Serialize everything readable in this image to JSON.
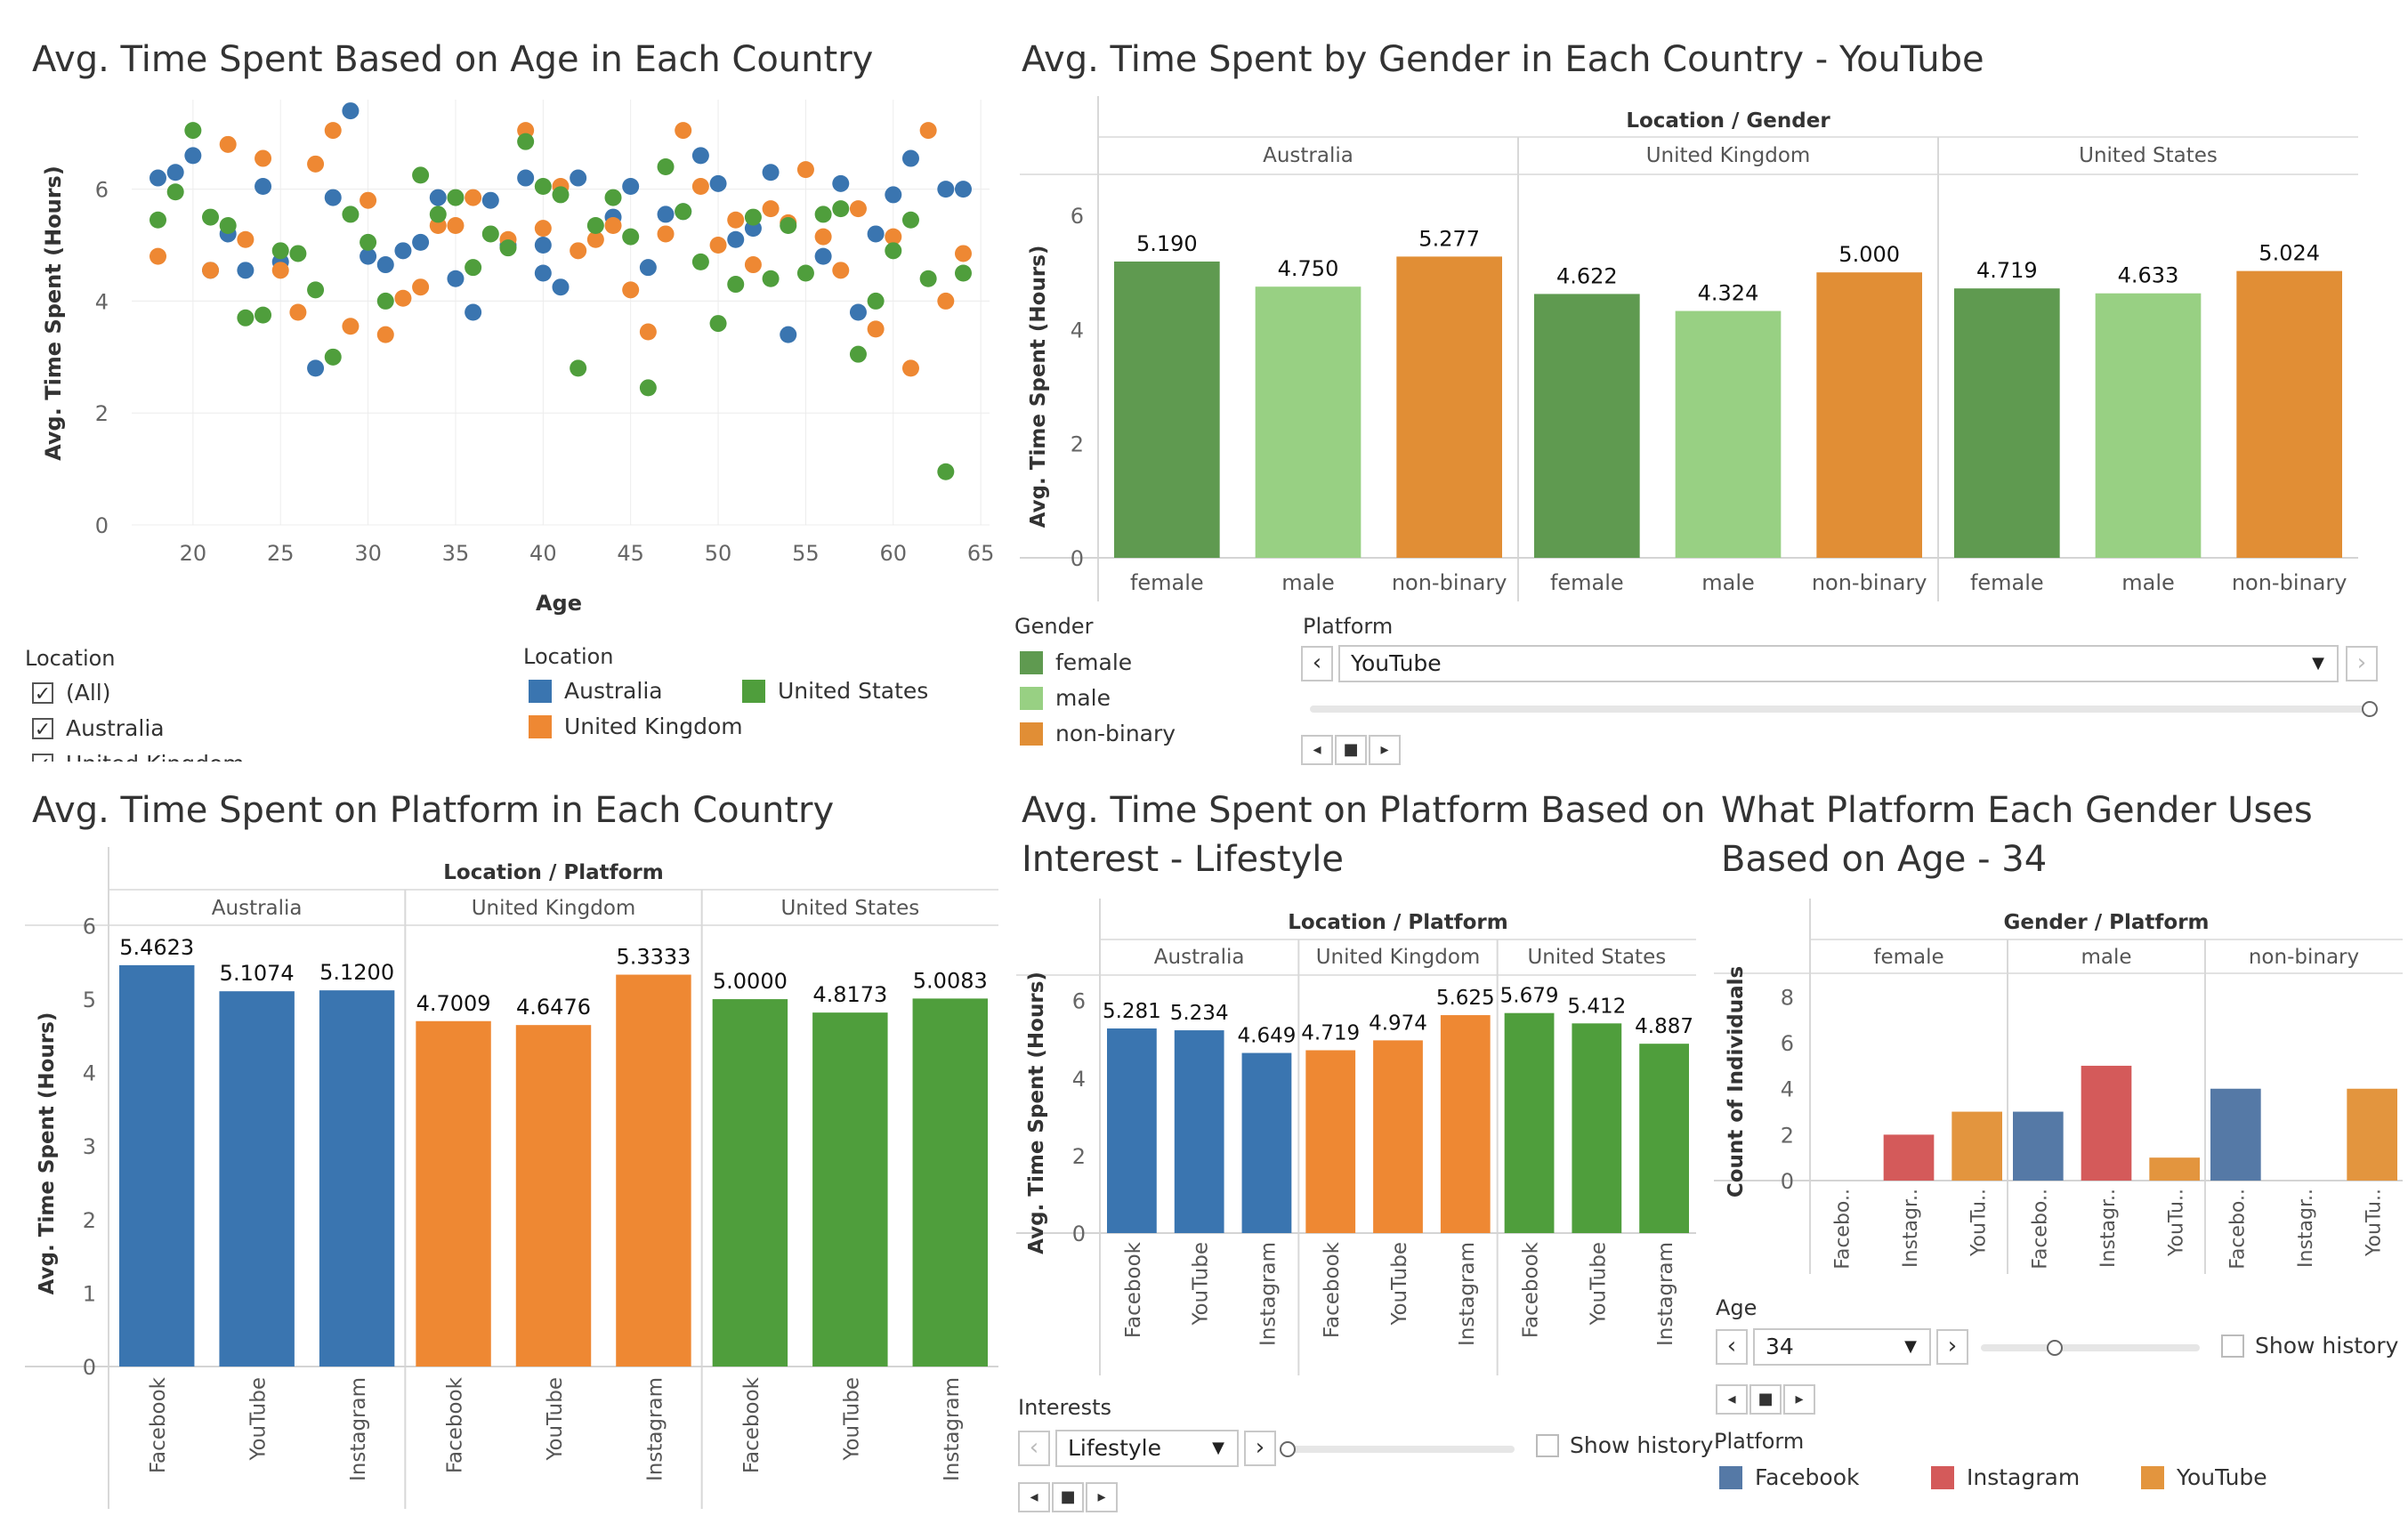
{
  "colors": {
    "australia": "#3a75b0",
    "united_kingdom": "#ee8833",
    "united_states": "#4f9e3c",
    "female": "#5f9a50",
    "male": "#98d083",
    "nonbinary": "#e18e35",
    "facebook": "#5579a6",
    "instagram": "#d45a5a",
    "youtube": "#e3953e"
  },
  "chart_data": [
    {
      "id": "scatter",
      "type": "scatter",
      "title": "Avg. Time Spent Based on Age in Each Country",
      "xlabel": "Age",
      "ylabel": "Avg. Time Spent (Hours)",
      "xlim": [
        16.5,
        65.5
      ],
      "ylim": [
        0,
        7.6
      ],
      "x_ticks": [
        20,
        25,
        30,
        35,
        40,
        45,
        50,
        55,
        60,
        65
      ],
      "y_ticks": [
        0,
        2,
        4,
        6
      ],
      "series": [
        {
          "name": "Australia",
          "color_key": "australia",
          "points": [
            [
              18,
              6.2
            ],
            [
              19,
              6.3
            ],
            [
              20,
              6.6
            ],
            [
              21,
              4.55
            ],
            [
              22,
              5.2
            ],
            [
              23,
              4.55
            ],
            [
              24,
              6.05
            ],
            [
              25,
              4.7
            ],
            [
              27,
              2.8
            ],
            [
              28,
              5.85
            ],
            [
              29,
              7.4
            ],
            [
              30,
              4.8
            ],
            [
              31,
              4.65
            ],
            [
              32,
              4.9
            ],
            [
              33,
              5.05
            ],
            [
              34,
              5.85
            ],
            [
              35,
              4.4
            ],
            [
              36,
              3.8
            ],
            [
              37,
              5.8
            ],
            [
              38,
              5.0
            ],
            [
              39,
              6.2
            ],
            [
              40,
              5.0
            ],
            [
              40,
              4.5
            ],
            [
              41,
              4.25
            ],
            [
              42,
              6.2
            ],
            [
              44,
              5.5
            ],
            [
              45,
              6.05
            ],
            [
              46,
              4.6
            ],
            [
              47,
              5.55
            ],
            [
              48,
              5.6
            ],
            [
              49,
              6.6
            ],
            [
              50,
              6.1
            ],
            [
              51,
              5.1
            ],
            [
              52,
              5.3
            ],
            [
              53,
              6.3
            ],
            [
              54,
              3.4
            ],
            [
              56,
              4.8
            ],
            [
              57,
              6.1
            ],
            [
              58,
              3.8
            ],
            [
              59,
              5.2
            ],
            [
              60,
              5.9
            ],
            [
              61,
              6.55
            ],
            [
              63,
              6.0
            ],
            [
              64,
              6.0
            ]
          ]
        },
        {
          "name": "United Kingdom",
          "color_key": "united_kingdom",
          "points": [
            [
              18,
              4.8
            ],
            [
              21,
              4.55
            ],
            [
              22,
              6.8
            ],
            [
              23,
              5.1
            ],
            [
              24,
              6.55
            ],
            [
              25,
              4.55
            ],
            [
              26,
              3.8
            ],
            [
              27,
              6.45
            ],
            [
              28,
              7.05
            ],
            [
              29,
              3.55
            ],
            [
              30,
              5.8
            ],
            [
              31,
              3.4
            ],
            [
              32,
              4.05
            ],
            [
              33,
              4.25
            ],
            [
              34,
              5.35
            ],
            [
              35,
              5.35
            ],
            [
              36,
              5.85
            ],
            [
              38,
              5.1
            ],
            [
              39,
              7.05
            ],
            [
              40,
              5.3
            ],
            [
              41,
              6.05
            ],
            [
              42,
              4.9
            ],
            [
              43,
              5.1
            ],
            [
              44,
              5.35
            ],
            [
              45,
              4.2
            ],
            [
              46,
              3.45
            ],
            [
              47,
              5.2
            ],
            [
              48,
              7.05
            ],
            [
              49,
              6.05
            ],
            [
              50,
              5.0
            ],
            [
              51,
              5.45
            ],
            [
              52,
              4.65
            ],
            [
              53,
              5.65
            ],
            [
              54,
              5.4
            ],
            [
              55,
              6.35
            ],
            [
              56,
              5.15
            ],
            [
              57,
              4.55
            ],
            [
              58,
              5.65
            ],
            [
              59,
              3.5
            ],
            [
              60,
              5.15
            ],
            [
              61,
              2.8
            ],
            [
              62,
              7.05
            ],
            [
              63,
              4.0
            ],
            [
              64,
              4.85
            ]
          ]
        },
        {
          "name": "United States",
          "color_key": "united_states",
          "points": [
            [
              18,
              5.45
            ],
            [
              19,
              5.95
            ],
            [
              20,
              7.05
            ],
            [
              21,
              5.5
            ],
            [
              22,
              5.35
            ],
            [
              23,
              3.7
            ],
            [
              24,
              3.75
            ],
            [
              25,
              4.9
            ],
            [
              26,
              4.85
            ],
            [
              27,
              4.2
            ],
            [
              28,
              3.0
            ],
            [
              29,
              5.55
            ],
            [
              30,
              5.05
            ],
            [
              31,
              4.0
            ],
            [
              33,
              6.25
            ],
            [
              34,
              5.55
            ],
            [
              35,
              5.85
            ],
            [
              36,
              4.6
            ],
            [
              37,
              5.2
            ],
            [
              38,
              4.95
            ],
            [
              39,
              6.85
            ],
            [
              40,
              6.05
            ],
            [
              41,
              5.9
            ],
            [
              42,
              2.8
            ],
            [
              43,
              5.35
            ],
            [
              44,
              5.85
            ],
            [
              45,
              5.15
            ],
            [
              46,
              2.45
            ],
            [
              47,
              6.4
            ],
            [
              48,
              5.6
            ],
            [
              49,
              4.7
            ],
            [
              50,
              3.6
            ],
            [
              51,
              4.3
            ],
            [
              52,
              5.5
            ],
            [
              53,
              4.4
            ],
            [
              54,
              5.35
            ],
            [
              55,
              4.5
            ],
            [
              56,
              5.55
            ],
            [
              57,
              5.65
            ],
            [
              58,
              3.05
            ],
            [
              59,
              4.0
            ],
            [
              60,
              4.9
            ],
            [
              61,
              5.45
            ],
            [
              62,
              4.4
            ],
            [
              63,
              0.95
            ],
            [
              64,
              4.5
            ]
          ]
        }
      ]
    },
    {
      "id": "gender",
      "type": "bar",
      "title": "Avg. Time Spent by Gender in Each Country - YouTube",
      "group_header": "Location / Gender",
      "ylabel": "Avg. Time Spent (Hours)",
      "ylim": [
        0,
        6.0
      ],
      "y_ticks": [
        0,
        2,
        4,
        6
      ],
      "categories": [
        "female",
        "male",
        "non-binary"
      ],
      "category_colors": [
        "female",
        "male",
        "nonbinary"
      ],
      "groups": [
        {
          "name": "Australia",
          "values": [
            5.19,
            4.75,
            5.277
          ],
          "labels": [
            "5.190",
            "4.750",
            "5.277"
          ]
        },
        {
          "name": "United Kingdom",
          "values": [
            4.622,
            4.324,
            5.0
          ],
          "labels": [
            "4.622",
            "4.324",
            "5.000"
          ]
        },
        {
          "name": "United States",
          "values": [
            4.719,
            4.633,
            5.024
          ],
          "labels": [
            "4.719",
            "4.633",
            "5.024"
          ]
        }
      ]
    },
    {
      "id": "platform",
      "type": "bar",
      "title": "Avg. Time Spent on Platform in Each Country",
      "group_header": "Location / Platform",
      "ylabel": "Avg. Time Spent (Hours)",
      "ylim": [
        0,
        5.8
      ],
      "y_ticks": [
        0,
        1,
        2,
        3,
        4,
        5,
        6
      ],
      "categories": [
        "Facebook",
        "YouTube",
        "Instagram"
      ],
      "groups": [
        {
          "name": "Australia",
          "color_key": "australia",
          "values": [
            5.4623,
            5.1074,
            5.12
          ],
          "labels": [
            "5.4623",
            "5.1074",
            "5.1200"
          ]
        },
        {
          "name": "United Kingdom",
          "color_key": "united_kingdom",
          "values": [
            4.7009,
            4.6476,
            5.3333
          ],
          "labels": [
            "4.7009",
            "4.6476",
            "5.3333"
          ]
        },
        {
          "name": "United States",
          "color_key": "united_states",
          "values": [
            5.0,
            4.8173,
            5.0083
          ],
          "labels": [
            "5.0000",
            "4.8173",
            "5.0083"
          ]
        }
      ]
    },
    {
      "id": "interest",
      "type": "bar",
      "title_lines": [
        "Avg. Time Spent on Platform Based on",
        "Interest - Lifestyle"
      ],
      "group_header": "Location / Platform",
      "ylabel": "Avg. Time Spent (Hours)",
      "ylim": [
        0,
        6.2
      ],
      "y_ticks": [
        0,
        2,
        4,
        6
      ],
      "categories": [
        "Facebook",
        "YouTube",
        "Instagram"
      ],
      "groups": [
        {
          "name": "Australia",
          "color_key": "australia",
          "values": [
            5.281,
            5.234,
            4.649
          ],
          "labels": [
            "5.281",
            "5.234",
            "4.649"
          ]
        },
        {
          "name": "United Kingdom",
          "color_key": "united_kingdom",
          "values": [
            4.719,
            4.974,
            5.625
          ],
          "labels": [
            "4.719",
            "4.974",
            "5.625"
          ]
        },
        {
          "name": "United States",
          "color_key": "united_states",
          "values": [
            5.679,
            5.412,
            4.887
          ],
          "labels": [
            "5.679",
            "5.412",
            "4.887"
          ]
        }
      ]
    },
    {
      "id": "age",
      "type": "bar",
      "title_lines": [
        "What Platform Each Gender Uses",
        "Based on Age - 34"
      ],
      "group_header": "Gender / Platform",
      "ylabel": "Count of Individuals",
      "ylim": [
        0,
        8.6
      ],
      "y_ticks": [
        0,
        2,
        4,
        6,
        8
      ],
      "categories": [
        "Facebo..",
        "Instagr..",
        "YouTu.."
      ],
      "category_colors": [
        "facebook",
        "instagram",
        "youtube"
      ],
      "groups": [
        {
          "name": "female",
          "values": [
            0,
            2,
            3
          ]
        },
        {
          "name": "male",
          "values": [
            3,
            5,
            1
          ]
        },
        {
          "name": "non-binary",
          "values": [
            4,
            0,
            4
          ]
        }
      ]
    }
  ],
  "filters": {
    "location_filter": {
      "title": "Location",
      "items": [
        {
          "label": "(All)",
          "checked": true
        },
        {
          "label": "Australia",
          "checked": true
        },
        {
          "label": "United Kingdom",
          "checked": true
        }
      ]
    },
    "location_legend": {
      "title": "Location",
      "items": [
        {
          "label": "Australia",
          "color_key": "australia"
        },
        {
          "label": "United States",
          "color_key": "united_states"
        },
        {
          "label": "United Kingdom",
          "color_key": "united_kingdom"
        }
      ]
    },
    "gender_legend": {
      "title": "Gender",
      "items": [
        {
          "label": "female",
          "color_key": "female"
        },
        {
          "label": "male",
          "color_key": "male"
        },
        {
          "label": "non-binary",
          "color_key": "nonbinary"
        }
      ]
    },
    "platform_control": {
      "title": "Platform",
      "value": "YouTube"
    },
    "interests_control": {
      "title": "Interests",
      "value": "Lifestyle",
      "show_history": "Show history"
    },
    "age_control": {
      "title": "Age",
      "value": "34",
      "show_history": "Show history"
    },
    "platform_legend": {
      "title": "Platform",
      "items": [
        {
          "label": "Facebook",
          "color_key": "facebook"
        },
        {
          "label": "Instagram",
          "color_key": "instagram"
        },
        {
          "label": "YouTube",
          "color_key": "youtube"
        }
      ]
    }
  }
}
